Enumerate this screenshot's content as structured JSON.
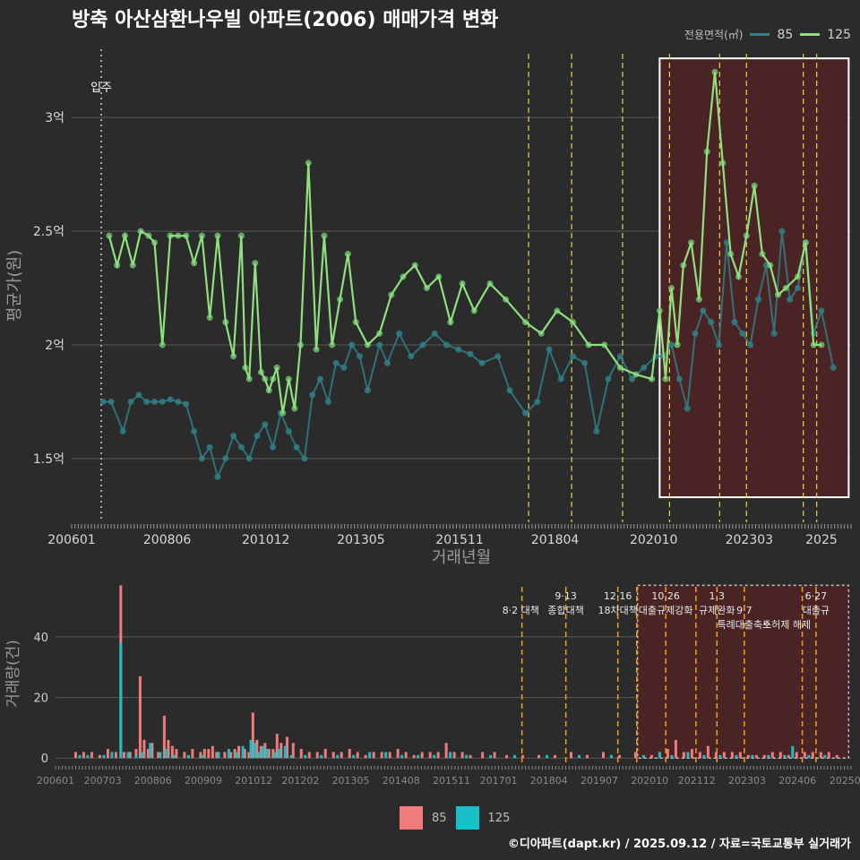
{
  "title": "방축 아산삼환나우빌 아파트(2006) 매매가격 변화",
  "footer": "©디아파트(dapt.kr) / 2025.09.12 / 자료=국토교통부 실거래가",
  "colors": {
    "bg": "#2b2b2b",
    "s85": "#2f7f86",
    "s125": "#8fe07e",
    "bar85": "#f07b7b",
    "bar125": "#17c0c9",
    "policy": "#e8d44a",
    "highlight": "#4a2424"
  },
  "chart_data": [
    {
      "type": "line",
      "title": "방축 아산삼환나우빌 아파트(2006) 매매가격 변화",
      "xlabel": "거래년월",
      "ylabel": "평균가(원)",
      "x_range": [
        2006.0,
        2025.75
      ],
      "ylim": [
        1.22,
        3.3
      ],
      "y_ticks": [
        1.5,
        2.0,
        2.5,
        3.0
      ],
      "y_tick_labels": [
        "1.5억",
        "2억",
        "2.5억",
        "3억"
      ],
      "x_ticks": [
        2006.0,
        2008.42,
        2010.92,
        2013.33,
        2015.83,
        2018.25,
        2020.75,
        2023.17,
        2025.0
      ],
      "x_tick_labels": [
        "200601",
        "200806",
        "201012",
        "201305",
        "201511",
        "201804",
        "202010",
        "202303",
        "2025"
      ],
      "legend_title": "전용면적(㎡)",
      "annotation": "입주",
      "move_in_x": 2006.75,
      "policy_lines": [
        2017.58,
        2018.67,
        2019.96,
        2021.15,
        2022.42,
        2023.1,
        2024.54,
        2024.88
      ],
      "highlight_range": {
        "x": [
          2020.9,
          2025.69
        ],
        "y": [
          1.33,
          3.26
        ]
      },
      "series": [
        {
          "name": "85",
          "color": "#2f7f86",
          "x": [
            2006.8,
            2007.0,
            2007.3,
            2007.5,
            2007.7,
            2007.9,
            2008.1,
            2008.3,
            2008.5,
            2008.7,
            2008.9,
            2009.1,
            2009.3,
            2009.5,
            2009.7,
            2009.9,
            2010.1,
            2010.3,
            2010.5,
            2010.7,
            2010.9,
            2011.1,
            2011.3,
            2011.5,
            2011.7,
            2011.9,
            2012.1,
            2012.3,
            2012.5,
            2012.7,
            2012.9,
            2013.1,
            2013.3,
            2013.5,
            2013.8,
            2014.0,
            2014.3,
            2014.6,
            2014.9,
            2015.2,
            2015.5,
            2015.8,
            2016.1,
            2016.4,
            2016.8,
            2017.1,
            2017.5,
            2017.8,
            2018.1,
            2018.4,
            2018.7,
            2019.0,
            2019.3,
            2019.6,
            2019.9,
            2020.2,
            2020.5,
            2020.8,
            2021.0,
            2021.2,
            2021.4,
            2021.6,
            2021.8,
            2022.0,
            2022.2,
            2022.4,
            2022.6,
            2022.8,
            2023.0,
            2023.2,
            2023.4,
            2023.6,
            2023.8,
            2024.0,
            2024.2,
            2024.4,
            2024.6,
            2024.8,
            2025.0,
            2025.3
          ],
          "y": [
            1.75,
            1.75,
            1.62,
            1.75,
            1.78,
            1.75,
            1.75,
            1.75,
            1.76,
            1.75,
            1.74,
            1.62,
            1.5,
            1.55,
            1.42,
            1.5,
            1.6,
            1.55,
            1.5,
            1.6,
            1.65,
            1.55,
            1.7,
            1.62,
            1.55,
            1.5,
            1.78,
            1.85,
            1.75,
            1.92,
            1.9,
            2.0,
            1.95,
            1.8,
            2.0,
            1.92,
            2.05,
            1.95,
            2.0,
            2.05,
            2.0,
            1.98,
            1.96,
            1.92,
            1.95,
            1.8,
            1.7,
            1.75,
            1.98,
            1.85,
            1.95,
            1.92,
            1.62,
            1.85,
            1.95,
            1.85,
            1.9,
            1.95,
            1.95,
            2.0,
            1.85,
            1.72,
            2.05,
            2.15,
            2.1,
            2.0,
            2.45,
            2.1,
            2.05,
            2.0,
            2.2,
            2.35,
            2.05,
            2.5,
            2.2,
            2.25,
            2.45,
            2.05,
            2.15,
            1.9
          ]
        },
        {
          "name": "125",
          "color": "#8fe07e",
          "x": [
            2006.95,
            2007.15,
            2007.35,
            2007.55,
            2007.75,
            2007.95,
            2008.1,
            2008.3,
            2008.5,
            2008.7,
            2008.9,
            2009.1,
            2009.3,
            2009.5,
            2009.7,
            2009.9,
            2010.1,
            2010.3,
            2010.4,
            2010.5,
            2010.65,
            2010.8,
            2010.9,
            2011.0,
            2011.1,
            2011.2,
            2011.35,
            2011.5,
            2011.65,
            2011.8,
            2012.0,
            2012.2,
            2012.4,
            2012.6,
            2012.8,
            2013.0,
            2013.2,
            2013.5,
            2013.8,
            2014.1,
            2014.4,
            2014.7,
            2015.0,
            2015.3,
            2015.6,
            2015.9,
            2016.2,
            2016.6,
            2017.0,
            2017.5,
            2017.9,
            2018.3,
            2018.7,
            2019.1,
            2019.5,
            2019.9,
            2020.3,
            2020.7,
            2020.9,
            2021.05,
            2021.2,
            2021.35,
            2021.5,
            2021.7,
            2021.9,
            2022.1,
            2022.3,
            2022.5,
            2022.7,
            2022.9,
            2023.1,
            2023.3,
            2023.5,
            2023.7,
            2023.9,
            2024.1,
            2024.4,
            2024.6,
            2024.8,
            2025.0
          ],
          "y": [
            2.48,
            2.35,
            2.48,
            2.35,
            2.5,
            2.48,
            2.45,
            2.0,
            2.48,
            2.48,
            2.48,
            2.36,
            2.48,
            2.12,
            2.48,
            2.1,
            1.95,
            2.48,
            1.9,
            1.85,
            2.36,
            1.88,
            1.85,
            1.8,
            1.85,
            1.9,
            1.7,
            1.85,
            1.72,
            2.0,
            2.8,
            1.98,
            2.48,
            2.0,
            2.2,
            2.4,
            2.1,
            2.0,
            2.05,
            2.22,
            2.3,
            2.35,
            2.25,
            2.3,
            2.1,
            2.27,
            2.15,
            2.27,
            2.2,
            2.1,
            2.05,
            2.15,
            2.1,
            2.0,
            2.0,
            1.9,
            1.87,
            1.85,
            2.15,
            1.85,
            2.25,
            2.0,
            2.35,
            2.45,
            2.2,
            2.85,
            3.2,
            2.8,
            2.4,
            2.3,
            2.48,
            2.7,
            2.4,
            2.35,
            2.22,
            2.25,
            2.3,
            2.45,
            2.0,
            2.0
          ]
        }
      ]
    },
    {
      "type": "bar",
      "title": "",
      "xlabel": "",
      "ylabel": "거래량(건)",
      "x_range": [
        2006.0,
        2025.75
      ],
      "ylim": [
        -2,
        58
      ],
      "y_ticks": [
        0,
        20,
        40
      ],
      "y_tick_labels": [
        "0",
        "20",
        "40"
      ],
      "x_ticks": [
        2006.0,
        2007.17,
        2008.42,
        2009.67,
        2010.92,
        2012.08,
        2013.33,
        2014.58,
        2015.83,
        2017.0,
        2018.25,
        2019.5,
        2020.75,
        2021.92,
        2023.17,
        2024.42,
        2025.6
      ],
      "x_tick_labels": [
        "200601",
        "200703",
        "200806",
        "200909",
        "201012",
        "201202",
        "201305",
        "201408",
        "201511",
        "201701",
        "201804",
        "201907",
        "202010",
        "202112",
        "202303",
        "202406",
        "20250"
      ],
      "policy_lines": [
        2017.58,
        2018.67,
        2019.96,
        2020.43,
        2021.15,
        2021.9,
        2022.42,
        2023.1,
        2024.54,
        2024.88
      ],
      "annotations": [
        {
          "x": 2017.55,
          "text": "8·2 대책",
          "row": 1
        },
        {
          "x": 2018.67,
          "text": "9·13",
          "row": 0
        },
        {
          "x": 2018.67,
          "text": "종합대책",
          "row": 1
        },
        {
          "x": 2019.96,
          "text": "12·16",
          "row": 0
        },
        {
          "x": 2019.96,
          "text": "18차대책",
          "row": 1
        },
        {
          "x": 2021.15,
          "text": "10.26",
          "row": 0
        },
        {
          "x": 2021.15,
          "text": "대출규제강화",
          "row": 1
        },
        {
          "x": 2022.42,
          "text": "1.3",
          "row": 0
        },
        {
          "x": 2022.42,
          "text": "규제완화",
          "row": 1
        },
        {
          "x": 2023.1,
          "text": "9·7",
          "row": 1
        },
        {
          "x": 2023.1,
          "text": "특례대출축소",
          "row": 2
        },
        {
          "x": 2024.15,
          "text": "토허제 해제",
          "row": 2
        },
        {
          "x": 2024.88,
          "text": "6·27",
          "row": 0
        },
        {
          "x": 2024.88,
          "text": "대출규",
          "row": 1
        }
      ],
      "highlight_range": {
        "x": [
          2020.45,
          2025.69
        ],
        "y": [
          0,
          57
        ]
      },
      "series": [
        {
          "name": "85",
          "color": "#f07b7b",
          "x": [
            2006.5,
            2006.7,
            2006.9,
            2007.1,
            2007.3,
            2007.5,
            2007.62,
            2007.7,
            2007.85,
            2008.0,
            2008.1,
            2008.2,
            2008.3,
            2008.4,
            2008.55,
            2008.7,
            2008.8,
            2008.9,
            2009.0,
            2009.2,
            2009.4,
            2009.6,
            2009.7,
            2009.8,
            2009.9,
            2010.0,
            2010.2,
            2010.35,
            2010.45,
            2010.55,
            2010.7,
            2010.8,
            2010.9,
            2011.0,
            2011.1,
            2011.2,
            2011.3,
            2011.4,
            2011.5,
            2011.6,
            2011.75,
            2011.9,
            2012.1,
            2012.3,
            2012.5,
            2012.7,
            2012.9,
            2013.1,
            2013.3,
            2013.5,
            2013.7,
            2013.9,
            2014.1,
            2014.3,
            2014.5,
            2014.7,
            2014.9,
            2015.1,
            2015.3,
            2015.5,
            2015.7,
            2015.9,
            2016.1,
            2016.3,
            2016.6,
            2016.9,
            2017.2,
            2017.6,
            2018.0,
            2018.4,
            2018.8,
            2019.2,
            2019.6,
            2020.0,
            2020.4,
            2020.8,
            2021.0,
            2021.2,
            2021.4,
            2021.6,
            2021.8,
            2022.0,
            2022.2,
            2022.4,
            2022.6,
            2022.8,
            2023.0,
            2023.2,
            2023.4,
            2023.6,
            2023.8,
            2024.0,
            2024.2,
            2024.4,
            2024.6,
            2024.8,
            2025.0,
            2025.2,
            2025.4
          ],
          "y": [
            2,
            2,
            2,
            1,
            3,
            2,
            57,
            2,
            2,
            3,
            27,
            6,
            3,
            5,
            2,
            14,
            6,
            4,
            3,
            2,
            3,
            2,
            3,
            3,
            4,
            2,
            2,
            2,
            3,
            4,
            3,
            2,
            15,
            6,
            4,
            5,
            3,
            3,
            8,
            5,
            7,
            5,
            3,
            2,
            2,
            3,
            2,
            2,
            3,
            2,
            1,
            2,
            2,
            2,
            3,
            2,
            1,
            2,
            2,
            2,
            5,
            2,
            2,
            1,
            2,
            2,
            1,
            1,
            1,
            1,
            2,
            1,
            2,
            1,
            2,
            1,
            2,
            3,
            6,
            2,
            3,
            2,
            4,
            2,
            2,
            2,
            2,
            1,
            1,
            1,
            2,
            2,
            1,
            2,
            2,
            2,
            2,
            2,
            1
          ]
        },
        {
          "name": "125",
          "color": "#17c0c9",
          "x": [
            2006.6,
            2006.8,
            2007.2,
            2007.4,
            2007.62,
            2007.8,
            2008.0,
            2008.15,
            2008.35,
            2008.6,
            2008.75,
            2008.95,
            2009.3,
            2009.65,
            2010.05,
            2010.3,
            2010.5,
            2010.65,
            2010.85,
            2010.95,
            2011.05,
            2011.15,
            2011.25,
            2011.45,
            2011.55,
            2011.7,
            2011.85,
            2012.2,
            2012.6,
            2013.0,
            2013.4,
            2013.8,
            2014.2,
            2014.6,
            2015.0,
            2015.4,
            2015.8,
            2016.2,
            2016.8,
            2017.4,
            2018.2,
            2019.0,
            2019.8,
            2020.6,
            2021.0,
            2021.3,
            2021.7,
            2022.1,
            2022.5,
            2022.9,
            2023.3,
            2023.7,
            2024.1,
            2024.3,
            2024.7,
            2025.1
          ],
          "y": [
            1,
            1,
            1,
            2,
            38,
            2,
            1,
            2,
            5,
            2,
            3,
            1,
            1,
            1,
            2,
            3,
            2,
            4,
            6,
            5,
            2,
            4,
            3,
            2,
            3,
            4,
            1,
            1,
            1,
            1,
            1,
            2,
            2,
            1,
            1,
            1,
            2,
            1,
            1,
            1,
            1,
            1,
            1,
            1,
            2,
            1,
            2,
            1,
            1,
            1,
            1,
            1,
            1,
            4,
            1,
            1
          ]
        }
      ]
    }
  ]
}
